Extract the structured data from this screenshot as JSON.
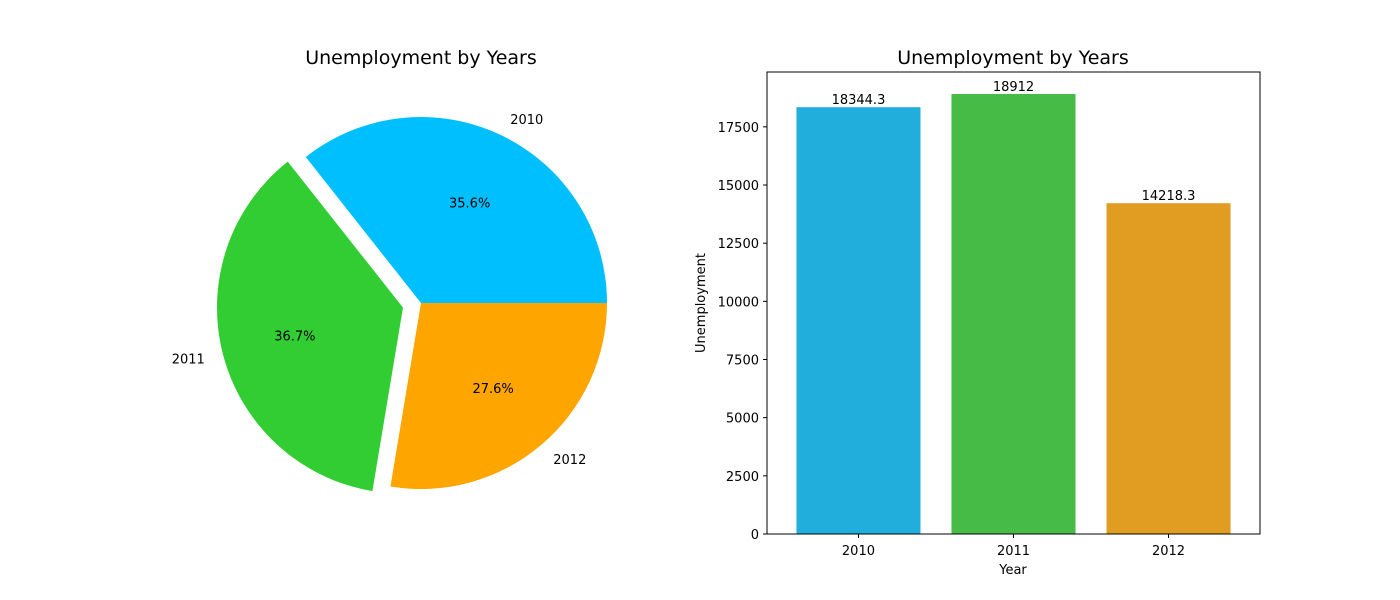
{
  "chart_data": [
    {
      "type": "pie",
      "title": "Unemployment by Years",
      "slices": [
        {
          "label": "2010",
          "value": 35.6,
          "pct_label": "35.6%",
          "color": "#00bfff",
          "explode": 0.0
        },
        {
          "label": "2011",
          "value": 36.7,
          "pct_label": "36.7%",
          "color": "#32cd32",
          "explode": 0.1
        },
        {
          "label": "2012",
          "value": 27.6,
          "pct_label": "27.6%",
          "color": "#ffa500",
          "explode": 0.0
        }
      ],
      "start_angle_deg": 0,
      "direction": "counterclockwise"
    },
    {
      "type": "bar",
      "title": "Unemployment by Years",
      "xlabel": "Year",
      "ylabel": "Unemployment",
      "categories": [
        "2010",
        "2011",
        "2012"
      ],
      "values": [
        18344.3,
        18912,
        14218.3
      ],
      "value_labels": [
        "18344.3",
        "18912",
        "14218.3"
      ],
      "colors": [
        "#22aedd",
        "#46bb46",
        "#e09d22"
      ],
      "ylim": [
        0,
        19857.6
      ],
      "yticks": [
        0,
        2500,
        5000,
        7500,
        10000,
        12500,
        15000,
        17500
      ],
      "grid": false
    }
  ]
}
